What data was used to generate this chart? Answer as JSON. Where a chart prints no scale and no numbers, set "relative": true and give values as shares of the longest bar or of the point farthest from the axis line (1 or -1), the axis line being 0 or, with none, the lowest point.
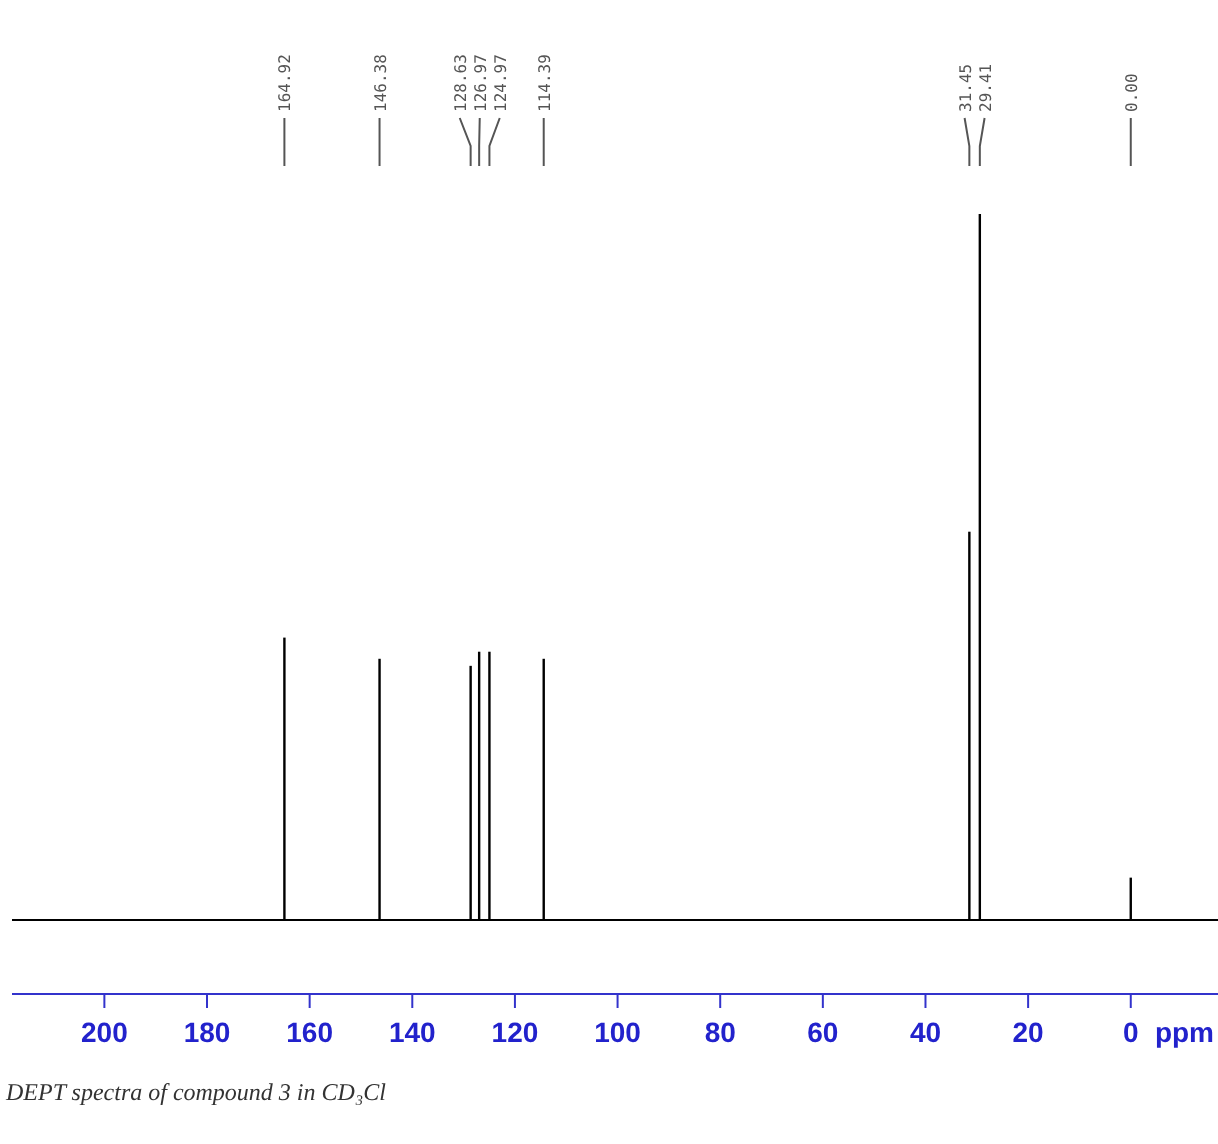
{
  "chart_data": {
    "type": "bar",
    "relative": true,
    "xlabel": "ppm",
    "xlim": [
      218,
      -17
    ],
    "xticks": [
      200,
      180,
      160,
      140,
      120,
      100,
      80,
      60,
      40,
      20,
      0
    ],
    "series": [
      {
        "color": "#000000",
        "x": [
          164.92,
          146.38,
          128.63,
          126.97,
          124.97,
          114.39,
          31.45,
          29.41,
          0
        ],
        "values": [
          0.4,
          0.37,
          0.36,
          0.38,
          0.38,
          0.37,
          0.55,
          1,
          0.06
        ]
      }
    ],
    "annotations": [
      {
        "text": "164.92",
        "x": 164.92
      },
      {
        "text": "146.38",
        "x": 146.38
      },
      {
        "text": "128.63",
        "x": 128.63
      },
      {
        "text": "126.97",
        "x": 126.97
      },
      {
        "text": "124.97",
        "x": 124.97
      },
      {
        "text": "114.39",
        "x": 114.39
      },
      {
        "text": "31.45",
        "x": 31.45
      },
      {
        "text": "29.41",
        "x": 29.41
      },
      {
        "text": "0.00",
        "x": 0
      },
      "DEPT spectra of compound 3 in CD₃Cl"
    ]
  }
}
